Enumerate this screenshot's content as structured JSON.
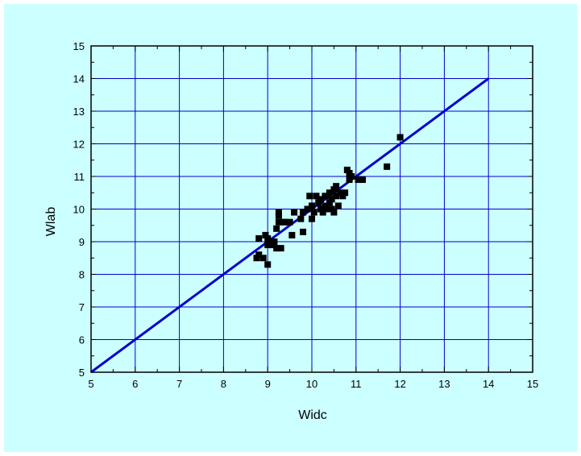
{
  "colors": {
    "background": "#ccffff",
    "grid": "#0000cc",
    "line": "#0000cc",
    "points": "#000000",
    "axes": "#000000"
  },
  "chart_data": {
    "type": "scatter",
    "title": "",
    "xlabel": "Widc",
    "ylabel": "Wlab",
    "xlim": [
      5,
      15
    ],
    "ylim": [
      5,
      15
    ],
    "x_ticks": [
      5,
      6,
      7,
      8,
      9,
      10,
      11,
      12,
      13,
      14,
      15
    ],
    "y_ticks": [
      5,
      6,
      7,
      8,
      9,
      10,
      11,
      12,
      13,
      14,
      15
    ],
    "x_tick_labels": [
      "5",
      "6",
      "7",
      "8",
      "9",
      "10",
      "11",
      "12",
      "13",
      "14",
      "15"
    ],
    "y_tick_labels": [
      "5",
      "6",
      "7",
      "8",
      "9",
      "10",
      "11",
      "12",
      "13",
      "14",
      "15"
    ],
    "grid": true,
    "points": [
      {
        "x": 8.75,
        "y": 8.5
      },
      {
        "x": 8.8,
        "y": 8.6
      },
      {
        "x": 8.8,
        "y": 9.1
      },
      {
        "x": 8.9,
        "y": 8.5
      },
      {
        "x": 8.95,
        "y": 9.2
      },
      {
        "x": 9.0,
        "y": 9.1
      },
      {
        "x": 9.0,
        "y": 8.3
      },
      {
        "x": 9.0,
        "y": 8.9
      },
      {
        "x": 9.05,
        "y": 9.0
      },
      {
        "x": 9.1,
        "y": 8.9
      },
      {
        "x": 9.15,
        "y": 9.0
      },
      {
        "x": 9.2,
        "y": 8.8
      },
      {
        "x": 9.2,
        "y": 9.4
      },
      {
        "x": 9.25,
        "y": 9.6
      },
      {
        "x": 9.25,
        "y": 9.9
      },
      {
        "x": 9.25,
        "y": 9.8
      },
      {
        "x": 9.3,
        "y": 8.8
      },
      {
        "x": 9.35,
        "y": 9.6
      },
      {
        "x": 9.4,
        "y": 9.6
      },
      {
        "x": 9.5,
        "y": 9.6
      },
      {
        "x": 9.55,
        "y": 9.2
      },
      {
        "x": 9.6,
        "y": 9.9
      },
      {
        "x": 9.75,
        "y": 9.7
      },
      {
        "x": 9.8,
        "y": 9.9
      },
      {
        "x": 9.8,
        "y": 9.3
      },
      {
        "x": 9.9,
        "y": 10.0
      },
      {
        "x": 9.95,
        "y": 10.4
      },
      {
        "x": 10.0,
        "y": 9.7
      },
      {
        "x": 10.0,
        "y": 10.1
      },
      {
        "x": 10.05,
        "y": 9.9
      },
      {
        "x": 10.1,
        "y": 10.4
      },
      {
        "x": 10.15,
        "y": 10.2
      },
      {
        "x": 10.2,
        "y": 10.0
      },
      {
        "x": 10.2,
        "y": 10.3
      },
      {
        "x": 10.25,
        "y": 9.9
      },
      {
        "x": 10.3,
        "y": 10.1
      },
      {
        "x": 10.3,
        "y": 10.4
      },
      {
        "x": 10.35,
        "y": 10.0
      },
      {
        "x": 10.4,
        "y": 10.2
      },
      {
        "x": 10.4,
        "y": 10.5
      },
      {
        "x": 10.45,
        "y": 10.0
      },
      {
        "x": 10.45,
        "y": 10.3
      },
      {
        "x": 10.5,
        "y": 9.9
      },
      {
        "x": 10.5,
        "y": 10.6
      },
      {
        "x": 10.55,
        "y": 10.4
      },
      {
        "x": 10.55,
        "y": 10.7
      },
      {
        "x": 10.6,
        "y": 10.1
      },
      {
        "x": 10.65,
        "y": 10.5
      },
      {
        "x": 10.7,
        "y": 10.4
      },
      {
        "x": 10.75,
        "y": 10.5
      },
      {
        "x": 10.8,
        "y": 11.2
      },
      {
        "x": 10.85,
        "y": 11.1
      },
      {
        "x": 10.85,
        "y": 10.9
      },
      {
        "x": 10.9,
        "y": 11.0
      },
      {
        "x": 11.05,
        "y": 10.9
      },
      {
        "x": 11.15,
        "y": 10.9
      },
      {
        "x": 11.7,
        "y": 11.3
      },
      {
        "x": 12.0,
        "y": 12.2
      }
    ],
    "reference_line": {
      "x": [
        5,
        14
      ],
      "y": [
        5,
        14
      ]
    }
  }
}
